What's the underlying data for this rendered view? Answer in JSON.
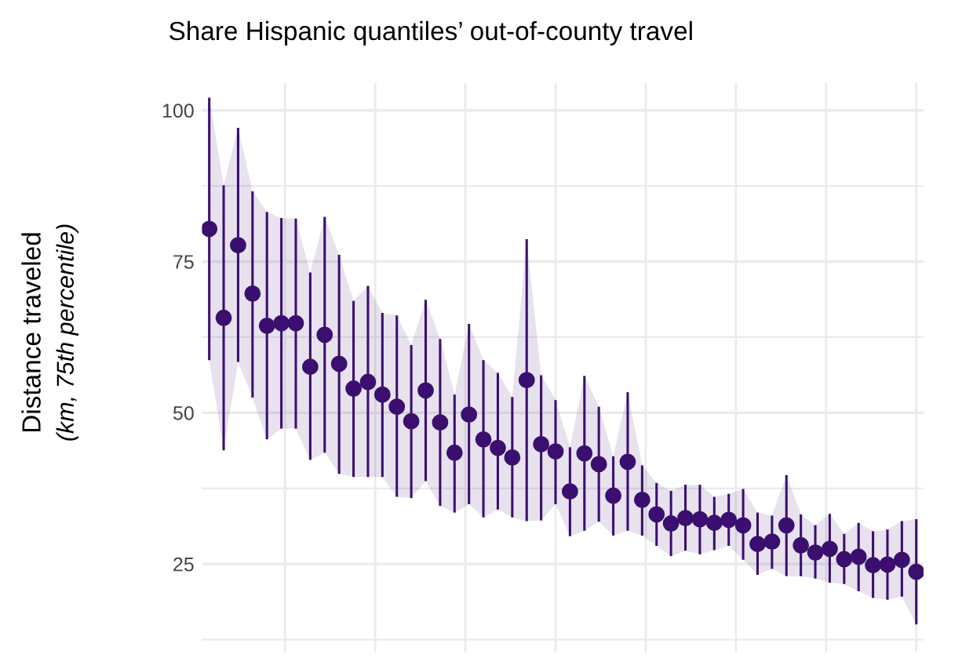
{
  "chart_data": {
    "type": "scatter",
    "title": "Share Hispanic quantiles’ out-of-county travel",
    "ylabel": "Distance traveled\n(km, 75th percentile)",
    "categories": [
      null,
      null,
      null,
      null,
      null,
      null,
      null,
      null,
      null,
      null,
      null,
      null,
      null,
      null,
      null,
      null,
      null,
      null,
      null,
      null,
      null,
      null,
      null,
      null,
      null,
      null,
      null,
      null,
      null,
      null,
      null,
      null,
      null,
      null,
      null,
      null,
      null,
      null,
      null,
      null,
      null,
      null,
      null,
      null,
      null,
      null,
      null,
      null,
      null,
      null
    ],
    "series": [
      {
        "color": "#3b0f6f",
        "values": [
          80.4,
          65.7,
          77.7,
          69.7,
          64.4,
          64.8,
          64.8,
          57.6,
          62.9,
          58.1,
          54.0,
          55.1,
          53.0,
          51.0,
          48.6,
          53.7,
          48.4,
          43.4,
          49.7,
          45.6,
          44.2,
          42.6,
          55.4,
          44.8,
          43.6,
          37.0,
          43.3,
          41.5,
          36.3,
          41.9,
          35.6,
          33.2,
          31.7,
          32.6,
          32.4,
          31.8,
          32.3,
          31.4,
          28.3,
          28.7,
          31.4,
          28.1,
          26.9,
          27.5,
          25.8,
          26.2,
          24.8,
          24.9,
          25.7,
          23.7
        ],
        "errors": [
          [
            58.7,
            102.1
          ],
          [
            43.8,
            87.6
          ],
          [
            58.4,
            97.1
          ],
          [
            52.5,
            86.6
          ],
          [
            45.6,
            83.2
          ],
          [
            47.4,
            82.2
          ],
          [
            47.4,
            82.1
          ],
          [
            42.2,
            73.2
          ],
          [
            43.4,
            82.4
          ],
          [
            39.9,
            76.1
          ],
          [
            39.4,
            68.5
          ],
          [
            39.4,
            71.0
          ],
          [
            39.4,
            66.5
          ],
          [
            36.1,
            66.1
          ],
          [
            35.9,
            61.2
          ],
          [
            38.7,
            68.7
          ],
          [
            34.6,
            62.2
          ],
          [
            33.5,
            53.0
          ],
          [
            34.9,
            64.7
          ],
          [
            32.7,
            58.7
          ],
          [
            34.0,
            56.6
          ],
          [
            32.7,
            52.6
          ],
          [
            32.1,
            78.7
          ],
          [
            32.2,
            56.2
          ],
          [
            34.9,
            52.1
          ],
          [
            29.6,
            44.3
          ],
          [
            30.5,
            56.1
          ],
          [
            32.0,
            51.0
          ],
          [
            29.7,
            42.8
          ],
          [
            30.5,
            53.4
          ],
          [
            29.7,
            41.3
          ],
          [
            28.0,
            38.4
          ],
          [
            26.3,
            37.1
          ],
          [
            27.2,
            38.1
          ],
          [
            26.6,
            38.1
          ],
          [
            27.3,
            36.1
          ],
          [
            28.0,
            36.6
          ],
          [
            25.7,
            37.4
          ],
          [
            23.2,
            33.5
          ],
          [
            24.2,
            33.0
          ],
          [
            23.0,
            39.7
          ],
          [
            23.0,
            33.2
          ],
          [
            22.6,
            31.4
          ],
          [
            21.9,
            33.3
          ],
          [
            21.7,
            30.0
          ],
          [
            20.5,
            31.8
          ],
          [
            19.4,
            30.4
          ],
          [
            19.1,
            30.7
          ],
          [
            19.6,
            32.1
          ],
          [
            15.0,
            32.4
          ]
        ],
        "lower": [
          58.7,
          43.8,
          58.4,
          52.5,
          45.6,
          47.4,
          47.4,
          42.2,
          43.4,
          39.9,
          39.4,
          39.4,
          39.4,
          36.1,
          35.9,
          38.7,
          34.6,
          33.5,
          34.9,
          32.7,
          34.0,
          32.7,
          32.1,
          32.2,
          34.9,
          29.6,
          30.5,
          32.0,
          29.7,
          30.5,
          29.7,
          28.0,
          26.3,
          27.2,
          26.6,
          27.3,
          28.0,
          25.7,
          23.2,
          24.2,
          23.0,
          23.0,
          22.6,
          21.9,
          21.7,
          20.5,
          19.4,
          19.1,
          19.6,
          15.0
        ],
        "upper": [
          102.1,
          87.6,
          97.1,
          86.6,
          83.2,
          82.2,
          82.1,
          73.2,
          82.4,
          76.1,
          68.5,
          71.0,
          66.5,
          66.1,
          61.2,
          68.7,
          62.2,
          53.0,
          64.7,
          58.7,
          56.6,
          52.6,
          78.7,
          56.2,
          52.1,
          44.3,
          56.1,
          51.0,
          42.8,
          53.4,
          41.3,
          38.4,
          37.1,
          38.1,
          38.1,
          36.1,
          36.6,
          37.4,
          33.5,
          33.0,
          39.7,
          33.2,
          31.4,
          33.3,
          30.0,
          31.8,
          30.4,
          30.7,
          32.1,
          32.4
        ]
      }
    ],
    "ylim": [
      10.5,
      104.5
    ],
    "yticks": [
      25,
      50,
      75,
      100
    ],
    "grid": true,
    "marker": "circle"
  }
}
